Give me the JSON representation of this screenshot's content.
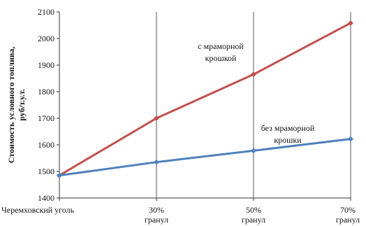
{
  "chart_data": {
    "type": "line",
    "title": "",
    "xlabel": "",
    "ylabel_line1": "Стоимость  условного  топлива,",
    "ylabel_line2": "руб/т.у.т.",
    "ylim": [
      1400,
      2100
    ],
    "yticks": [
      1400,
      1500,
      1600,
      1700,
      1800,
      1900,
      2000,
      2100
    ],
    "grid": "vertical",
    "categories": [
      {
        "line1": "Черемховский уголь",
        "line2": ""
      },
      {
        "line1": "30%",
        "line2": "гранул"
      },
      {
        "line1": "50%",
        "line2": "гранул"
      },
      {
        "line1": "70%",
        "line2": "гранул"
      }
    ],
    "series": [
      {
        "label_line1": "с мраморной",
        "label_line2": "крошкой",
        "color": "#c0504d",
        "values": [
          1485,
          1700,
          1865,
          2058
        ]
      },
      {
        "label_line1": "без мраморной",
        "label_line2": "крошки",
        "color": "#4f81bd",
        "values": [
          1485,
          1535,
          1578,
          1622
        ]
      }
    ]
  }
}
